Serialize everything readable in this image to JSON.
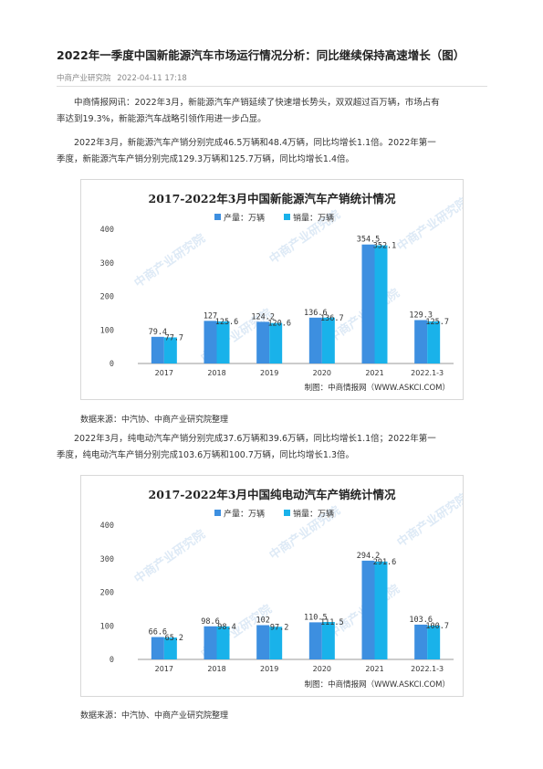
{
  "article": {
    "title": "2022年一季度中国新能源汽车市场运行情况分析：同比继续保持高速增长（图）",
    "source_name": "中商产业研究院",
    "date": "2022-04-11 17:18",
    "para1_line1": "中商情报网讯：2022年3月，新能源汽车产销延续了快速增长势头，双双超过百万辆，市场占有",
    "para1_line2": "率达到19.3%，新能源汽车战略引领作用进一步凸显。",
    "para2_line1": "2022年3月，新能源汽车产销分别完成46.5万辆和48.4万辆，同比均增长1.1倍。2022年第一",
    "para2_line2": "季度，新能源汽车产销分别完成129.3万辆和125.7万辆，同比均增长1.4倍。",
    "source1": "数据来源：中汽协、中商产业研究院整理",
    "para3_line1": "2022年3月，纯电动汽车产销分别完成37.6万辆和39.6万辆，同比均增长1.1倍；2022年第一",
    "para3_line2": "季度，纯电动汽车产销分别完成103.6万辆和100.7万辆，同比均增长1.3倍。",
    "source2": "数据来源：中汽协、中商产业研究院整理"
  },
  "colors": {
    "production": "#3d8fe0",
    "sales": "#19b2ea",
    "axis": "#999999",
    "watermark": "#c3d8ee"
  },
  "chart_data": [
    {
      "type": "bar",
      "title": "2017-2022年3月中国新能源汽车产销统计情况",
      "categories": [
        "2017",
        "2018",
        "2019",
        "2020",
        "2021",
        "2022.1-3"
      ],
      "series": [
        {
          "name": "产量：万辆",
          "values": [
            79.4,
            127,
            124.2,
            136.6,
            354.5,
            129.3
          ],
          "labels": [
            "79.4",
            "127",
            "124.2",
            "136.6",
            "354.5",
            "129.3"
          ]
        },
        {
          "name": "销量：万辆",
          "values": [
            77.7,
            125.6,
            120.6,
            136.7,
            352.1,
            125.7
          ],
          "labels": [
            "77.7",
            "125.6",
            "120.6",
            "136.7",
            "352.1",
            "125.7"
          ]
        }
      ],
      "yticks": [
        "0",
        "100",
        "200",
        "300",
        "400"
      ],
      "ylim": [
        0,
        400
      ],
      "legend": "top",
      "grid": false,
      "credit": "制图：中商情报网（WWW.ASKCI.COM）",
      "watermark": "中商产业研究院"
    },
    {
      "type": "bar",
      "title": "2017-2022年3月中国纯电动汽车产销统计情况",
      "categories": [
        "2017",
        "2018",
        "2019",
        "2020",
        "2021",
        "2022.1-3"
      ],
      "series": [
        {
          "name": "产量：万辆",
          "values": [
            66.6,
            98.6,
            102,
            110.5,
            294.2,
            103.6
          ],
          "labels": [
            "66.6",
            "98.6",
            "102",
            "110.5",
            "294.2",
            "103.6"
          ]
        },
        {
          "name": "销量：万辆",
          "values": [
            65.2,
            98.4,
            97.2,
            111.5,
            291.6,
            100.7
          ],
          "labels": [
            "65.2",
            "98.4",
            "97.2",
            "111.5",
            "291.6",
            "100.7"
          ]
        }
      ],
      "yticks": [
        "0",
        "100",
        "200",
        "300",
        "400"
      ],
      "ylim": [
        0,
        400
      ],
      "legend": "top",
      "grid": false,
      "credit": "制图：中商情报网（WWW.ASKCI.COM）",
      "watermark": "中商产业研究院"
    }
  ]
}
